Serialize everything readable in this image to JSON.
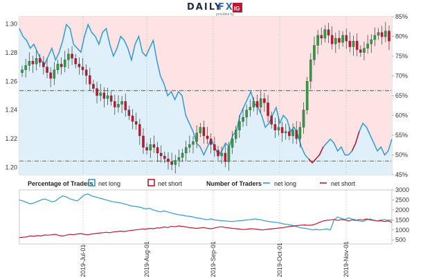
{
  "header": {
    "brand_left": "DAILY",
    "brand_right": "FX",
    "provided_by": "provided by",
    "partner_logo": "IG"
  },
  "colors": {
    "net_long": "#2b9bd6",
    "net_short": "#c0172f",
    "long_fill": "#dff0fb",
    "short_fill": "#fde3e3",
    "candle_up": "#2e9e3e",
    "candle_down": "#c0172f"
  },
  "chart_data": [
    {
      "type": "candlestick",
      "y_left_ticks": [
        "1.20",
        "1.22",
        "1.24",
        "1.26",
        "1.28",
        "1.30"
      ],
      "y_left_values": [
        1.2,
        1.22,
        1.24,
        1.26,
        1.28,
        1.3
      ],
      "y_left_range": [
        1.195,
        1.305
      ],
      "y_right_ticks": [
        "45%",
        "50%",
        "55%",
        "60%",
        "65%",
        "70%",
        "75%",
        "80%",
        "85%"
      ],
      "y_right_values": [
        45,
        50,
        55,
        60,
        65,
        70,
        75,
        80,
        85
      ],
      "reference_lines": [
        1.2535,
        1.2045
      ],
      "x_range": [
        "2019-06-03",
        "2019-11-14"
      ],
      "price_close": [
        1.268,
        1.271,
        1.274,
        1.272,
        1.276,
        1.273,
        1.27,
        1.266,
        1.262,
        1.268,
        1.272,
        1.27,
        1.275,
        1.279,
        1.276,
        1.272,
        1.27,
        1.268,
        1.264,
        1.258,
        1.255,
        1.25,
        1.252,
        1.248,
        1.25,
        1.246,
        1.242,
        1.244,
        1.246,
        1.24,
        1.236,
        1.232,
        1.23,
        1.222,
        1.214,
        1.212,
        1.216,
        1.214,
        1.21,
        1.208,
        1.206,
        1.204,
        1.202,
        1.205,
        1.207,
        1.21,
        1.214,
        1.216,
        1.218,
        1.224,
        1.228,
        1.222,
        1.22,
        1.216,
        1.212,
        1.208,
        1.21,
        1.204,
        1.214,
        1.22,
        1.226,
        1.232,
        1.235,
        1.24,
        1.242,
        1.246,
        1.242,
        1.248,
        1.245,
        1.236,
        1.23,
        1.226,
        1.228,
        1.224,
        1.225,
        1.222,
        1.226,
        1.22,
        1.228,
        1.24,
        1.26,
        1.275,
        1.285,
        1.292,
        1.29,
        1.296,
        1.292,
        1.286,
        1.29,
        1.287,
        1.292,
        1.288,
        1.284,
        1.288,
        1.282,
        1.28,
        1.283,
        1.286,
        1.289,
        1.292,
        1.294,
        1.291,
        1.295,
        1.288
      ],
      "long_pct": [
        82,
        80,
        79,
        77,
        78,
        76,
        74,
        73,
        75,
        77,
        74,
        76,
        79,
        83,
        82,
        78,
        77,
        76,
        80,
        83,
        81,
        80,
        78,
        81,
        82,
        78,
        75,
        77,
        80,
        79,
        77,
        74,
        78,
        80,
        76,
        75,
        77,
        79,
        74,
        70,
        68,
        65,
        66,
        64,
        66,
        65,
        60,
        58,
        56,
        53,
        52,
        50,
        52,
        54,
        52,
        50,
        51,
        53,
        52,
        55,
        56,
        60,
        62,
        64,
        66,
        63,
        62,
        60,
        57,
        58,
        60,
        62,
        58,
        60,
        59,
        56,
        57,
        55,
        52,
        50,
        49,
        48,
        49,
        50,
        52,
        53,
        54,
        53,
        51,
        52,
        50,
        50,
        51,
        53,
        56,
        58,
        57,
        55,
        53,
        51,
        52,
        50,
        51,
        54
      ],
      "short_span": [
        [
          80,
          84
        ],
        [
          92,
          94
        ]
      ]
    },
    {
      "type": "line",
      "title_left": "Percentage of Traders",
      "title_right": "Number of Traders",
      "legend": [
        "net long",
        "net short",
        "net long",
        "net short"
      ],
      "y_ticks": [
        "500",
        "1000",
        "1500",
        "2000",
        "2500",
        "3000"
      ],
      "y_values": [
        500,
        1000,
        1500,
        2000,
        2500,
        3000
      ],
      "x_ticks": [
        "2019-Jul-01",
        "2019-Aug-01",
        "2019-Sep-01",
        "2019-Oct-01",
        "2019-Nov-01"
      ],
      "series": [
        {
          "name": "net long",
          "values": [
            2500,
            2450,
            2380,
            2300,
            2350,
            2420,
            2500,
            2550,
            2480,
            2400,
            2450,
            2600,
            2700,
            2650,
            2550,
            2500,
            2450,
            2600,
            2750,
            2800,
            2700,
            2650,
            2600,
            2550,
            2500,
            2450,
            2400,
            2380,
            2350,
            2300,
            2250,
            2200,
            2180,
            2150,
            2100,
            2050,
            2080,
            2000,
            1950,
            1900,
            1950,
            1900,
            1850,
            1800,
            1760,
            1740,
            1700,
            1680,
            1650,
            1600,
            1580,
            1540,
            1520,
            1550,
            1500,
            1480,
            1460,
            1450,
            1430,
            1420,
            1450,
            1460,
            1480,
            1500,
            1520,
            1550,
            1530,
            1500,
            1450,
            1420,
            1400,
            1380,
            1350,
            1300,
            1280,
            1250,
            1200,
            1150,
            1100,
            1080,
            1050,
            1000,
            1030,
            1000,
            1020,
            1050,
            1000,
            1500,
            1650,
            1580,
            1520,
            1600,
            1550,
            1500,
            1450,
            1420,
            1500,
            1550,
            1480,
            1450,
            1500,
            1520,
            1480,
            1500
          ]
        },
        {
          "name": "net short",
          "values": [
            620,
            640,
            650,
            700,
            680,
            720,
            700,
            750,
            740,
            760,
            780,
            720,
            700,
            740,
            780,
            760,
            800,
            820,
            780,
            760,
            800,
            820,
            840,
            860,
            880,
            860,
            900,
            920,
            940,
            920,
            950,
            980,
            1000,
            1020,
            1050,
            1040,
            1080,
            1060,
            1100,
            1100,
            1150,
            1120,
            1180,
            1160,
            1200,
            1180,
            1150,
            1120,
            1100,
            1080,
            1100,
            1120,
            1080,
            1060,
            1100,
            1140,
            1160,
            1120,
            1100,
            1080,
            1060,
            1040,
            1020,
            1040,
            1060,
            1050,
            1030,
            1000,
            1020,
            1040,
            1060,
            1080,
            1100,
            1120,
            1150,
            1180,
            1200,
            1220,
            1240,
            1250,
            1230,
            1250,
            1300,
            1380,
            1450,
            1480,
            1500,
            1520,
            1480,
            1520,
            1500,
            1450,
            1500,
            1480,
            1520,
            1500,
            1550,
            1500,
            1480,
            1450,
            1460,
            1420,
            1450,
            1380
          ]
        }
      ]
    }
  ]
}
